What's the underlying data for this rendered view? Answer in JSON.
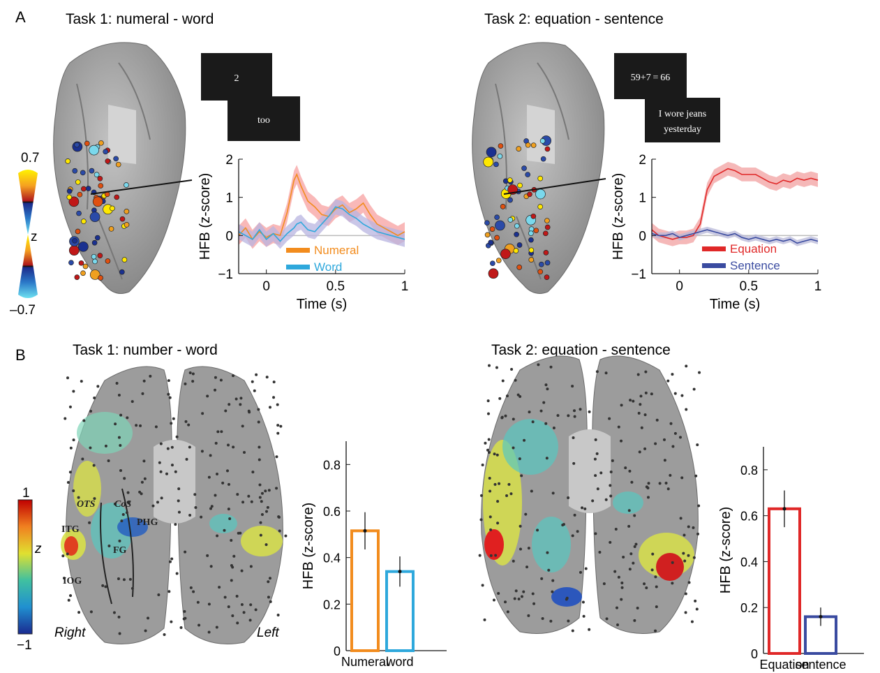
{
  "panel_a": {
    "label": "A",
    "task1_title": "Task 1: numeral - word",
    "task2_title": "Task 2: equation - sentence",
    "stim1_a": "2",
    "stim1_b": "too",
    "stim2_a": "59+7 = 66",
    "stim2_b_line1": "I wore jeans",
    "stim2_b_line2": "yesterday",
    "colorbar_max": "0.7",
    "colorbar_min": "–0.7",
    "colorbar_label": "z"
  },
  "panel_b": {
    "label": "B",
    "task1_title": "Task 1: number - word",
    "task2_title": "Task 2: equation - sentence",
    "colorbar_max": "1",
    "colorbar_min": "−1",
    "colorbar_label": "z",
    "hemisphere_right": "Right",
    "hemisphere_left": "Left",
    "regions": {
      "itg": "ITG",
      "ots": "OTS",
      "cos": "CoS",
      "phg": "PHG",
      "fg": "FG",
      "iog": "IOG"
    }
  },
  "colors": {
    "numeral": "#f28c1e",
    "word": "#2ea8dc",
    "equation": "#e02828",
    "sentence": "#3a4ba0",
    "brain": "#9a9a9a"
  },
  "chart_data": [
    {
      "type": "line",
      "id": "a1",
      "xlabel": "Time (s)",
      "ylabel": "HFB (z-score)",
      "xlim": [
        -0.2,
        1
      ],
      "ylim": [
        -1,
        2
      ],
      "xticks": [
        0,
        0.5,
        1
      ],
      "xtick_labels": [
        "0",
        "0.5",
        "1"
      ],
      "yticks": [
        -1,
        0,
        1,
        2
      ],
      "ytick_labels": [
        "−1",
        "0",
        "1",
        "2"
      ],
      "legend_position": "bottom-center",
      "x": [
        -0.2,
        -0.15,
        -0.1,
        -0.05,
        0,
        0.05,
        0.1,
        0.15,
        0.2,
        0.22,
        0.25,
        0.3,
        0.35,
        0.4,
        0.45,
        0.5,
        0.55,
        0.6,
        0.65,
        0.7,
        0.75,
        0.8,
        0.85,
        0.9,
        0.95,
        1.0
      ],
      "series": [
        {
          "name": "Numeral",
          "color": "#f28c1e",
          "band": "#f7a0a0",
          "values": [
            0.0,
            0.2,
            -0.1,
            0.1,
            -0.05,
            0.05,
            0.0,
            0.6,
            1.45,
            1.6,
            1.3,
            0.9,
            0.75,
            0.55,
            0.5,
            0.7,
            0.8,
            0.6,
            0.7,
            0.85,
            0.55,
            0.3,
            0.2,
            0.1,
            0.0,
            0.1
          ],
          "err": 0.25
        },
        {
          "name": "Word",
          "color": "#2ea8dc",
          "band": "#b8b4e0",
          "values": [
            0.1,
            0.0,
            -0.1,
            0.15,
            -0.1,
            0.05,
            -0.15,
            0.05,
            0.2,
            0.3,
            0.35,
            0.15,
            0.1,
            0.3,
            0.5,
            0.75,
            0.7,
            0.55,
            0.45,
            0.3,
            0.2,
            0.1,
            0.05,
            0.0,
            -0.05,
            -0.1
          ],
          "err": 0.2
        }
      ]
    },
    {
      "type": "line",
      "id": "a2",
      "xlabel": "Time (s)",
      "ylabel": "HFB (z-score)",
      "xlim": [
        -0.2,
        1
      ],
      "ylim": [
        -1,
        2
      ],
      "xticks": [
        0,
        0.5,
        1
      ],
      "xtick_labels": [
        "0",
        "0.5",
        "1"
      ],
      "yticks": [
        -1,
        0,
        1,
        2
      ],
      "ytick_labels": [
        "−1",
        "0",
        "1",
        "2"
      ],
      "legend_position": "bottom-right",
      "x": [
        -0.2,
        -0.15,
        -0.1,
        -0.05,
        0,
        0.05,
        0.1,
        0.15,
        0.2,
        0.25,
        0.3,
        0.35,
        0.4,
        0.45,
        0.5,
        0.55,
        0.6,
        0.65,
        0.7,
        0.75,
        0.8,
        0.85,
        0.9,
        0.95,
        1.0
      ],
      "series": [
        {
          "name": "Equation",
          "color": "#e02828",
          "band": "#f2a0a0",
          "values": [
            0.15,
            0.0,
            -0.05,
            -0.1,
            -0.05,
            -0.05,
            0.0,
            0.3,
            1.2,
            1.55,
            1.65,
            1.75,
            1.7,
            1.6,
            1.6,
            1.6,
            1.5,
            1.4,
            1.35,
            1.45,
            1.4,
            1.5,
            1.45,
            1.5,
            1.45
          ],
          "err": 0.18
        },
        {
          "name": "Sentence",
          "color": "#3a4ba0",
          "band": "#b8b8d8",
          "values": [
            0.05,
            0.0,
            0.0,
            0.05,
            -0.05,
            0.0,
            0.05,
            0.1,
            0.15,
            0.1,
            0.05,
            0.0,
            0.05,
            -0.05,
            -0.1,
            -0.05,
            -0.1,
            -0.15,
            -0.1,
            -0.15,
            -0.1,
            -0.2,
            -0.15,
            -0.1,
            -0.15
          ],
          "err": 0.08
        }
      ]
    },
    {
      "type": "bar",
      "id": "b1",
      "categories": [
        "Numeral",
        "word"
      ],
      "values": [
        0.515,
        0.34
      ],
      "errors": [
        0.08,
        0.065
      ],
      "colors": [
        "#f28c1e",
        "#2ea8dc"
      ],
      "ylabel": "HFB (z-score)",
      "ylim": [
        0,
        0.9
      ],
      "yticks": [
        0,
        0.2,
        0.4,
        0.6,
        0.8
      ],
      "ytick_labels": [
        "0",
        "0.2",
        "0.4",
        "0.6",
        "0.8"
      ]
    },
    {
      "type": "bar",
      "id": "b2",
      "categories": [
        "Equation",
        "sentence"
      ],
      "values": [
        0.63,
        0.16
      ],
      "errors": [
        0.08,
        0.04
      ],
      "colors": [
        "#e02828",
        "#3a4ba0"
      ],
      "ylabel": "HFB (z-score)",
      "ylim": [
        0,
        0.9
      ],
      "yticks": [
        0,
        0.2,
        0.4,
        0.6,
        0.8
      ],
      "ytick_labels": [
        "0",
        "0.2",
        "0.4",
        "0.6",
        "0.8"
      ]
    }
  ]
}
